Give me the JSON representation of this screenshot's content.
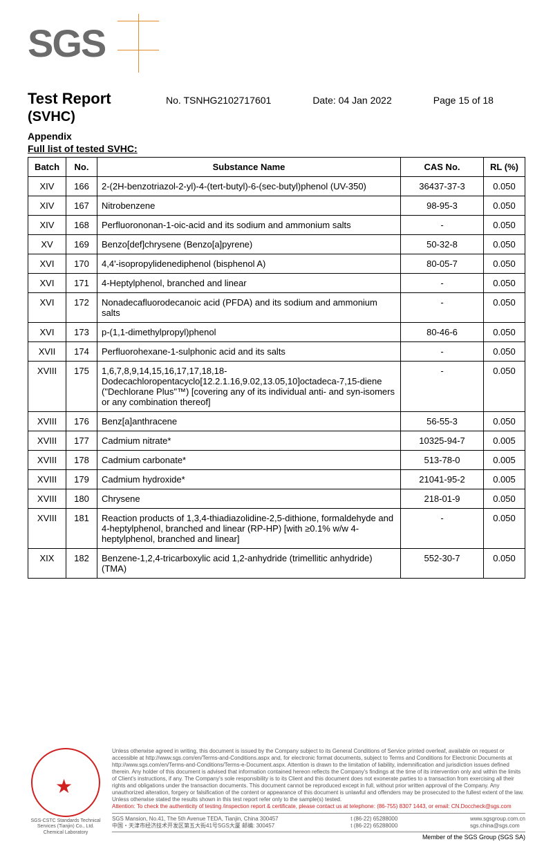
{
  "logo": {
    "text": "SGS"
  },
  "header": {
    "title": "Test Report",
    "subtitle": "(SVHC)",
    "report_no_label": "No. ",
    "report_no": "TSNHG2102717601",
    "date_label": "Date: ",
    "date": "04 Jan 2022",
    "page": "Page 15 of 18"
  },
  "appendix_label": "Appendix",
  "list_title": "Full list of tested SVHC:",
  "table": {
    "columns": [
      "Batch",
      "No.",
      "Substance Name",
      "CAS No.",
      "RL (%)"
    ],
    "col_align": [
      "center",
      "center",
      "left",
      "center",
      "center"
    ],
    "rows": [
      [
        "XIV",
        "166",
        "2-(2H-benzotriazol-2-yl)-4-(tert-butyl)-6-(sec-butyl)phenol (UV-350)",
        "36437-37-3",
        "0.050"
      ],
      [
        "XIV",
        "167",
        "Nitrobenzene",
        "98-95-3",
        "0.050"
      ],
      [
        "XIV",
        "168",
        "Perfluorononan-1-oic-acid and its sodium and ammonium salts",
        "-",
        "0.050"
      ],
      [
        "XV",
        "169",
        "Benzo[def]chrysene (Benzo[a]pyrene)",
        "50-32-8",
        "0.050"
      ],
      [
        "XVI",
        "170",
        "4,4'-isopropylidenediphenol (bisphenol A)",
        "80-05-7",
        "0.050"
      ],
      [
        "XVI",
        "171",
        "4-Heptylphenol, branched and linear",
        "-",
        "0.050"
      ],
      [
        "XVI",
        "172",
        "Nonadecafluorodecanoic acid (PFDA) and its sodium and ammonium salts",
        "-",
        "0.050"
      ],
      [
        "XVI",
        "173",
        "p-(1,1-dimethylpropyl)phenol",
        "80-46-6",
        "0.050"
      ],
      [
        "XVII",
        "174",
        "Perfluorohexane-1-sulphonic acid and its salts",
        "-",
        "0.050"
      ],
      [
        "XVIII",
        "175",
        "1,6,7,8,9,14,15,16,17,17,18,18-Dodecachloropentacyclo[12.2.1.16,9.02,13.05,10]octadeca-7,15-diene (\"Dechlorane Plus\"™) [covering any of its individual anti- and syn-isomers or any combination thereof]",
        "-",
        "0.050"
      ],
      [
        "XVIII",
        "176",
        "Benz[a]anthracene",
        "56-55-3",
        "0.050"
      ],
      [
        "XVIII",
        "177",
        "Cadmium nitrate*",
        "10325-94-7",
        "0.005"
      ],
      [
        "XVIII",
        "178",
        "Cadmium carbonate*",
        "513-78-0",
        "0.005"
      ],
      [
        "XVIII",
        "179",
        "Cadmium hydroxide*",
        "21041-95-2",
        "0.005"
      ],
      [
        "XVIII",
        "180",
        "Chrysene",
        "218-01-9",
        "0.050"
      ],
      [
        "XVIII",
        "181",
        "Reaction products of 1,3,4-thiadiazolidine-2,5-dithione, formaldehyde and 4-heptylphenol, branched and linear (RP-HP) [with ≥0.1% w/w 4-heptylphenol, branched and linear]",
        "-",
        "0.050"
      ],
      [
        "XIX",
        "182",
        "Benzene-1,2,4-tricarboxylic acid 1,2-anhydride (trimellitic anhydride) (TMA)",
        "552-30-7",
        "0.050"
      ]
    ]
  },
  "footer": {
    "disclaimer": "Unless otherwise agreed in writing, this document is issued by the Company subject to its General Conditions of Service printed overleaf, available on request or accessible at http://www.sgs.com/en/Terms-and-Conditions.aspx and, for electronic format documents, subject to Terms and Conditions for Electronic Documents at http://www.sgs.com/en/Terms-and-Conditions/Terms-e-Document.aspx. Attention is drawn to the limitation of liability, indemnification and jurisdiction issues defined therein. Any holder of this document is advised that information contained hereon reflects the Company's findings at the time of its intervention only and within the limits of Client's instructions, if any. The Company's sole responsibility is to its Client and this document does not exonerate parties to a transaction from exercising all their rights and obligations under the transaction documents. This document cannot be reproduced except in full, without prior written approval of the Company. Any unauthorized alteration, forgery or falsification of the content or appearance of this document is unlawful and offenders may be prosecuted to the fullest extent of the law. Unless otherwise stated the results shown in this test report refer only to the sample(s) tested.",
    "attention": "Attention: To check the authenticity of testing /inspection report & certificate, please contact us at telephone: (86-755) 8307 1443, or email: CN.Doccheck@sgs.com",
    "addr_en": "SGS Mansion, No.41, The 5th Avenue TEDA, Tianjin, China 300457",
    "addr_cn": "中国・天津市经济技术开发区第五大街41号SGS大厦   邮编: 300457",
    "tel1": "t  (86-22) 65288000",
    "tel2": "t  (86-22) 65288000",
    "web": "www.sgsgroup.com.cn",
    "email": "sgs.china@sgs.com",
    "member": "Member of the SGS Group (SGS SA)",
    "stamp_sub1": "SGS-CSTC Standards Technical Services (Tianjin) Co., Ltd.",
    "stamp_sub2": "Chemical Laboratory"
  },
  "colors": {
    "logo_text": "#6b6b6b",
    "logo_line": "#e08a2a",
    "stamp_red": "#d02020",
    "text": "#000000",
    "footer_text": "#555555"
  },
  "typography": {
    "logo_fontsize": 56,
    "title_fontsize": 22,
    "body_fontsize": 13,
    "footer_fontsize": 8
  }
}
